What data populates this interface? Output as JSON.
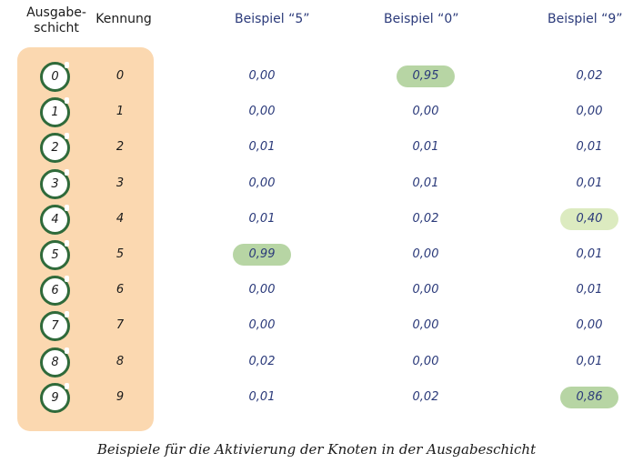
{
  "headers": {
    "layer_line1": "Ausgabe-",
    "layer_line2": "schicht",
    "id": "Kennung",
    "examples": [
      "Beispiel “5”",
      "Beispiel “0”",
      "Beispiel “9”"
    ]
  },
  "rows": [
    {
      "node": "0",
      "id": "0",
      "values": [
        "0,00",
        "0,95",
        "0,02"
      ]
    },
    {
      "node": "1",
      "id": "1",
      "values": [
        "0,00",
        "0,00",
        "0,00"
      ]
    },
    {
      "node": "2",
      "id": "2",
      "values": [
        "0,01",
        "0,01",
        "0,01"
      ]
    },
    {
      "node": "3",
      "id": "3",
      "values": [
        "0,00",
        "0,01",
        "0,01"
      ]
    },
    {
      "node": "4",
      "id": "4",
      "values": [
        "0,01",
        "0,02",
        "0,40"
      ]
    },
    {
      "node": "5",
      "id": "5",
      "values": [
        "0,99",
        "0,00",
        "0,01"
      ]
    },
    {
      "node": "6",
      "id": "6",
      "values": [
        "0,00",
        "0,00",
        "0,01"
      ]
    },
    {
      "node": "7",
      "id": "7",
      "values": [
        "0,00",
        "0,00",
        "0,00"
      ]
    },
    {
      "node": "8",
      "id": "8",
      "values": [
        "0,02",
        "0,00",
        "0,01"
      ]
    },
    {
      "node": "9",
      "id": "9",
      "values": [
        "0,01",
        "0,02",
        "0,86"
      ]
    }
  ],
  "highlights": [
    {
      "row": 0,
      "col": 1,
      "level": "strong"
    },
    {
      "row": 5,
      "col": 0,
      "level": "strong"
    },
    {
      "row": 4,
      "col": 2,
      "level": "weak"
    },
    {
      "row": 9,
      "col": 2,
      "level": "strong"
    }
  ],
  "colors": {
    "panel": "#fbd8b0",
    "node_ring": "#2f6a3a",
    "highlight_strong": "#b7d5a4",
    "highlight_weak": "#dcebc0",
    "value_text": "#2b3a7a"
  },
  "caption": "Beispiele für die Aktivierung der Knoten in der Ausgabeschicht"
}
